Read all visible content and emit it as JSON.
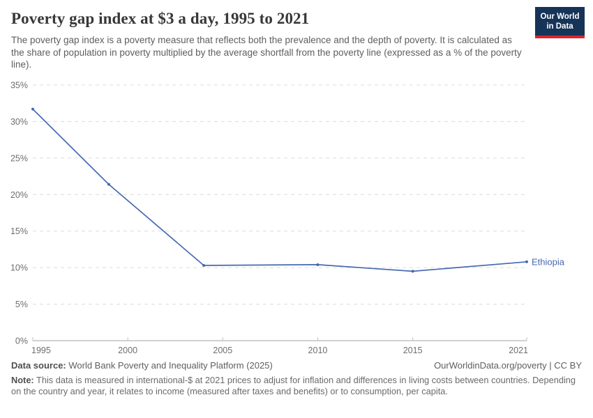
{
  "header": {
    "title": "Poverty gap index at $3 a day, 1995 to 2021",
    "subtitle": "The poverty gap index is a poverty measure that reflects both the prevalence and the depth of poverty. It is calculated as the share of population in poverty multiplied by the average shortfall from the poverty line (expressed as a % of the poverty line).",
    "logo": {
      "line1": "Our World",
      "line2": "in Data",
      "bg_color": "#163358",
      "stripe_color": "#d8262c"
    }
  },
  "chart_data": {
    "type": "line",
    "title": "Poverty gap index at $3 a day, 1995 to 2021",
    "xlabel": "",
    "ylabel": "",
    "x": {
      "min": 1995,
      "max": 2021,
      "ticks": [
        1995,
        2000,
        2005,
        2010,
        2015,
        2021
      ]
    },
    "y": {
      "min": 0,
      "max": 35,
      "ticks": [
        0,
        5,
        10,
        15,
        20,
        25,
        30,
        35
      ],
      "tick_suffix": "%"
    },
    "grid": "horizontal-dashed",
    "legend": "line-end-label",
    "series": [
      {
        "name": "Ethiopia",
        "color": "#4669af",
        "points": [
          {
            "year": 1995,
            "value": 31.7
          },
          {
            "year": 1999,
            "value": 21.4
          },
          {
            "year": 2004,
            "value": 10.3
          },
          {
            "year": 2010,
            "value": 10.4
          },
          {
            "year": 2015,
            "value": 9.5
          },
          {
            "year": 2021,
            "value": 10.8
          }
        ]
      }
    ],
    "colors": {
      "gridline": "#dcdcdc",
      "axis_line": "#a3a3a3",
      "tick_mark": "#c2c2c2",
      "tick_label": "#6e6e6e"
    }
  },
  "footer": {
    "datasource_label": "Data source:",
    "datasource_text": " World Bank Poverty and Inequality Platform (2025)",
    "credit": "OurWorldinData.org/poverty | CC BY",
    "note_label": "Note:",
    "note_text": " This data is measured in international-$ at 2021 prices to adjust for inflation and differences in living costs between countries. Depending on the country and year, it relates to income (measured after taxes and benefits) or to consumption, per capita."
  }
}
